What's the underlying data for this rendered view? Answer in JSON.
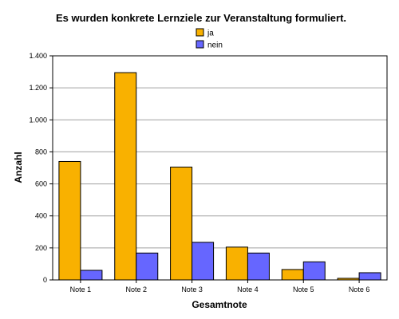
{
  "chart_data": {
    "type": "bar",
    "title": "Es wurden konkrete Lernziele zur Veranstaltung formuliert.",
    "xlabel": "Gesamtnote",
    "ylabel": "Anzahl",
    "categories": [
      "Note 1",
      "Note 2",
      "Note 3",
      "Note 4",
      "Note 5",
      "Note 6"
    ],
    "series": [
      {
        "name": "ja",
        "color": "#F9B100",
        "values": [
          740,
          1295,
          705,
          205,
          65,
          10
        ]
      },
      {
        "name": "nein",
        "color": "#6666FF",
        "values": [
          60,
          168,
          235,
          168,
          113,
          45
        ]
      }
    ],
    "ylim": [
      0,
      1400
    ],
    "yticks": [
      0,
      200,
      400,
      600,
      800,
      1000,
      1200,
      1400
    ],
    "ytick_labels": [
      "0",
      "200",
      "400",
      "600",
      "800",
      "1.000",
      "1.200",
      "1.400"
    ],
    "grid": true,
    "legend_position": "top-center"
  }
}
